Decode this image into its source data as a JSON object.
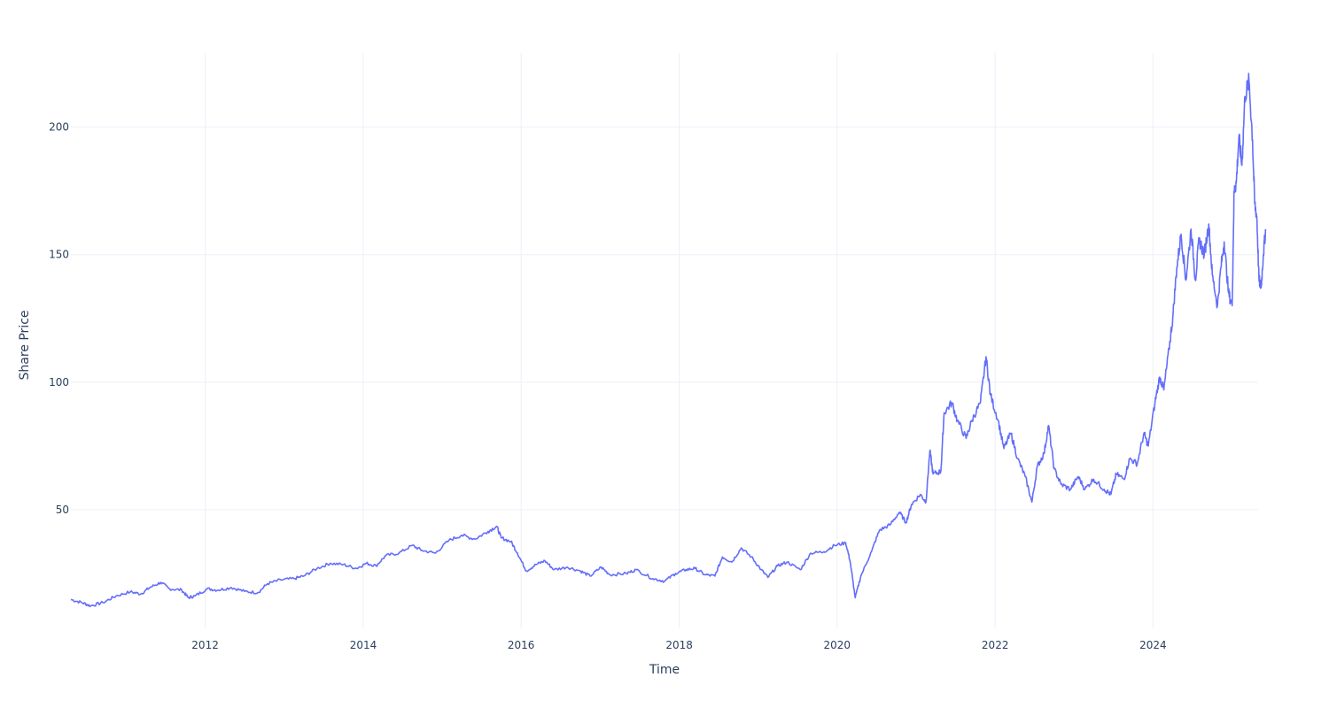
{
  "chart_data": {
    "type": "line",
    "title": "",
    "xlabel": "Time",
    "ylabel": "Share Price",
    "xlim": [
      "2010-04-20",
      "2025-05-01"
    ],
    "ylim": [
      3.5,
      229
    ],
    "x_ticks": [
      {
        "label": "2012",
        "date": "2012-01-01"
      },
      {
        "label": "2014",
        "date": "2014-01-01"
      },
      {
        "label": "2016",
        "date": "2016-01-01"
      },
      {
        "label": "2018",
        "date": "2018-01-01"
      },
      {
        "label": "2020",
        "date": "2020-01-01"
      },
      {
        "label": "2022",
        "date": "2022-01-01"
      },
      {
        "label": "2024",
        "date": "2024-01-01"
      }
    ],
    "y_ticks": [
      {
        "label": "50",
        "value": 50
      },
      {
        "label": "100",
        "value": 100
      },
      {
        "label": "150",
        "value": 150
      },
      {
        "label": "200",
        "value": 200
      }
    ],
    "grid": true,
    "legend": "none",
    "line_color": "#636efa",
    "series": [
      {
        "points": [
          [
            "2010-04-20",
            14.8
          ],
          [
            "2010-06-10",
            13.6
          ],
          [
            "2010-07-20",
            12.3
          ],
          [
            "2010-09-15",
            13.6
          ],
          [
            "2010-11-15",
            16.2
          ],
          [
            "2011-01-20",
            17.8
          ],
          [
            "2011-03-10",
            17.0
          ],
          [
            "2011-04-20",
            19.5
          ],
          [
            "2011-06-10",
            21.5
          ],
          [
            "2011-07-20",
            19.0
          ],
          [
            "2011-09-15",
            18.5
          ],
          [
            "2011-10-15",
            15.5
          ],
          [
            "2011-11-15",
            16.2
          ],
          [
            "2012-01-10",
            19.0
          ],
          [
            "2012-03-01",
            18.5
          ],
          [
            "2012-05-01",
            19.5
          ],
          [
            "2012-07-01",
            18.0
          ],
          [
            "2012-09-01",
            17.5
          ],
          [
            "2012-10-15",
            21.0
          ],
          [
            "2012-12-15",
            22.5
          ],
          [
            "2013-02-15",
            23.0
          ],
          [
            "2013-04-01",
            24.0
          ],
          [
            "2013-06-01",
            27.0
          ],
          [
            "2013-08-01",
            29.0
          ],
          [
            "2013-10-01",
            28.5
          ],
          [
            "2013-12-01",
            27.0
          ],
          [
            "2014-01-15",
            29.0
          ],
          [
            "2014-03-01",
            28.0
          ],
          [
            "2014-04-15",
            32.0
          ],
          [
            "2014-06-15",
            33.0
          ],
          [
            "2014-08-15",
            36.0
          ],
          [
            "2014-10-01",
            34.0
          ],
          [
            "2014-12-01",
            33.0
          ],
          [
            "2015-02-01",
            38.0
          ],
          [
            "2015-04-01",
            40.0
          ],
          [
            "2015-06-01",
            38.5
          ],
          [
            "2015-08-01",
            41.5
          ],
          [
            "2015-09-10",
            43.5
          ],
          [
            "2015-10-01",
            39.0
          ],
          [
            "2015-11-15",
            37.5
          ],
          [
            "2015-12-15",
            33.0
          ],
          [
            "2016-01-25",
            26.0
          ],
          [
            "2016-03-10",
            28.5
          ],
          [
            "2016-04-20",
            30.0
          ],
          [
            "2016-06-01",
            26.5
          ],
          [
            "2016-08-01",
            27.5
          ],
          [
            "2016-10-01",
            26.0
          ],
          [
            "2016-11-15",
            24.0
          ],
          [
            "2017-01-05",
            27.5
          ],
          [
            "2017-02-15",
            24.5
          ],
          [
            "2017-05-01",
            25.0
          ],
          [
            "2017-06-15",
            26.5
          ],
          [
            "2017-09-01",
            23.0
          ],
          [
            "2017-10-25",
            22.0
          ],
          [
            "2017-12-15",
            25.0
          ],
          [
            "2018-02-01",
            26.5
          ],
          [
            "2018-03-15",
            27.0
          ],
          [
            "2018-05-01",
            24.5
          ],
          [
            "2018-06-15",
            24.0
          ],
          [
            "2018-07-20",
            31.5
          ],
          [
            "2018-09-01",
            29.5
          ],
          [
            "2018-10-15",
            35.0
          ],
          [
            "2018-12-01",
            31.5
          ],
          [
            "2019-01-15",
            26.5
          ],
          [
            "2019-02-15",
            23.5
          ],
          [
            "2019-04-01",
            28.0
          ],
          [
            "2019-05-15",
            29.5
          ],
          [
            "2019-07-15",
            26.5
          ],
          [
            "2019-09-01",
            33.0
          ],
          [
            "2019-11-01",
            33.5
          ],
          [
            "2019-12-20",
            36.0
          ],
          [
            "2020-02-10",
            37.0
          ],
          [
            "2020-03-01",
            30.0
          ],
          [
            "2020-03-25",
            15.5
          ],
          [
            "2020-04-20",
            24.0
          ],
          [
            "2020-06-10",
            34.0
          ],
          [
            "2020-07-15",
            42.0
          ],
          [
            "2020-09-01",
            44.0
          ],
          [
            "2020-10-15",
            49.0
          ],
          [
            "2020-11-15",
            45.0
          ],
          [
            "2020-12-10",
            52.0
          ],
          [
            "2021-01-20",
            56.0
          ],
          [
            "2021-02-15",
            53.0
          ],
          [
            "2021-03-05",
            73.0
          ],
          [
            "2021-03-20",
            64.0
          ],
          [
            "2021-04-25",
            65.0
          ],
          [
            "2021-05-10",
            88.0
          ],
          [
            "2021-06-15",
            92.0
          ],
          [
            "2021-07-10",
            85.0
          ],
          [
            "2021-08-20",
            78.0
          ],
          [
            "2021-09-15",
            85.0
          ],
          [
            "2021-10-25",
            92.0
          ],
          [
            "2021-11-20",
            110.0
          ],
          [
            "2021-12-10",
            95.0
          ],
          [
            "2022-01-15",
            85.0
          ],
          [
            "2022-02-10",
            74.0
          ],
          [
            "2022-03-15",
            80.0
          ],
          [
            "2022-04-15",
            70.0
          ],
          [
            "2022-05-20",
            63.0
          ],
          [
            "2022-06-20",
            53.0
          ],
          [
            "2022-07-15",
            67.0
          ],
          [
            "2022-08-15",
            72.0
          ],
          [
            "2022-09-05",
            83.0
          ],
          [
            "2022-10-01",
            66.0
          ],
          [
            "2022-11-01",
            60.0
          ],
          [
            "2022-12-15",
            58.0
          ],
          [
            "2023-01-20",
            63.0
          ],
          [
            "2023-02-20",
            58.0
          ],
          [
            "2023-04-01",
            62.0
          ],
          [
            "2023-05-20",
            58.0
          ],
          [
            "2023-06-20",
            56.0
          ],
          [
            "2023-07-15",
            64.0
          ],
          [
            "2023-08-20",
            62.0
          ],
          [
            "2023-09-15",
            70.0
          ],
          [
            "2023-10-20",
            68.0
          ],
          [
            "2023-11-20",
            80.0
          ],
          [
            "2023-12-10",
            75.0
          ],
          [
            "2024-01-10",
            92.0
          ],
          [
            "2024-02-01",
            102.0
          ],
          [
            "2024-02-20",
            97.0
          ],
          [
            "2024-03-15",
            113.0
          ],
          [
            "2024-04-01",
            125.0
          ],
          [
            "2024-04-20",
            145.0
          ],
          [
            "2024-05-10",
            158.0
          ],
          [
            "2024-06-01",
            140.0
          ],
          [
            "2024-06-25",
            160.0
          ],
          [
            "2024-07-15",
            140.0
          ],
          [
            "2024-08-01",
            156.0
          ],
          [
            "2024-08-25",
            150.0
          ],
          [
            "2024-09-15",
            162.0
          ],
          [
            "2024-10-01",
            142.0
          ],
          [
            "2024-10-25",
            130.0
          ],
          [
            "2024-11-10",
            145.0
          ],
          [
            "2024-11-25",
            155.0
          ],
          [
            "2024-12-15",
            135.0
          ],
          [
            "2025-01-01",
            130.0
          ],
          [
            "2025-01-10",
            175.0
          ],
          [
            "2025-01-20",
            178.0
          ],
          [
            "2025-02-01",
            196.0
          ],
          [
            "2025-02-15",
            185.0
          ],
          [
            "2025-03-01",
            212.0
          ],
          [
            "2025-03-20",
            218.0
          ],
          [
            "2025-04-05",
            195.0
          ],
          [
            "2025-04-15",
            170.0
          ],
          [
            "2025-04-25",
            165.0
          ],
          [
            "2025-05-05",
            140.0
          ],
          [
            "2025-05-15",
            137.0
          ],
          [
            "2025-05-25",
            150.0
          ],
          [
            "2025-06-05",
            160.0
          ]
        ]
      }
    ]
  }
}
